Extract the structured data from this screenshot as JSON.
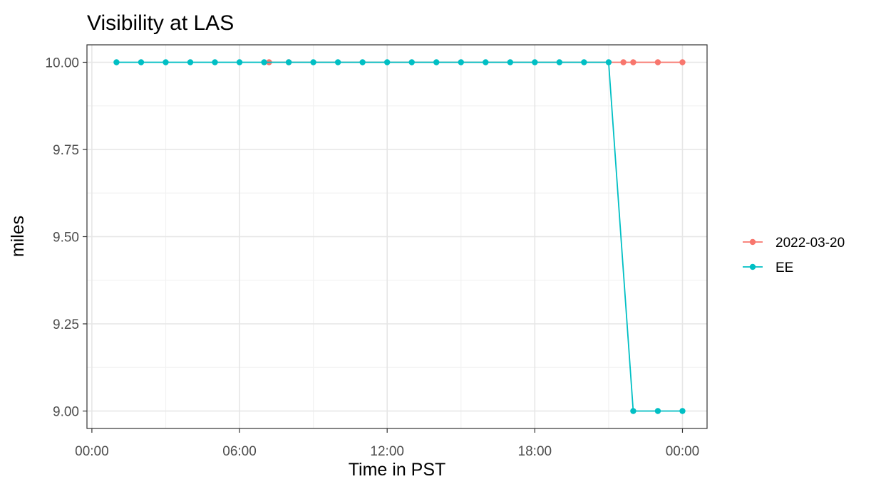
{
  "chart_data": {
    "type": "line",
    "title": "Visibility at LAS",
    "xlabel": "Time in PST",
    "ylabel": "miles",
    "x_tick_labels": [
      "00:00",
      "06:00",
      "12:00",
      "18:00",
      "00:00"
    ],
    "x_tick_hours": [
      0,
      6,
      12,
      18,
      24
    ],
    "xlim_hours": [
      -0.2,
      25.0
    ],
    "y_tick_labels": [
      "9.00",
      "9.25",
      "9.50",
      "9.75",
      "10.00"
    ],
    "y_ticks": [
      9.0,
      9.25,
      9.5,
      9.75,
      10.0
    ],
    "ylim": [
      8.95,
      10.05
    ],
    "grid": true,
    "legend_position": "right",
    "series": [
      {
        "name": "2022-03-20",
        "color": "#F8766D",
        "x_hours": [
          7.2,
          8,
          21.6,
          22,
          23,
          24
        ],
        "values": [
          10,
          10,
          10,
          10,
          10,
          10
        ]
      },
      {
        "name": "EE",
        "color": "#00BFC4",
        "x_hours": [
          1,
          2,
          3,
          4,
          5,
          6,
          7,
          8,
          9,
          10,
          11,
          12,
          13,
          14,
          15,
          16,
          17,
          18,
          19,
          20,
          21,
          22,
          23,
          24
        ],
        "values": [
          10,
          10,
          10,
          10,
          10,
          10,
          10,
          10,
          10,
          10,
          10,
          10,
          10,
          10,
          10,
          10,
          10,
          10,
          10,
          10,
          10,
          9,
          9,
          9
        ]
      }
    ]
  }
}
